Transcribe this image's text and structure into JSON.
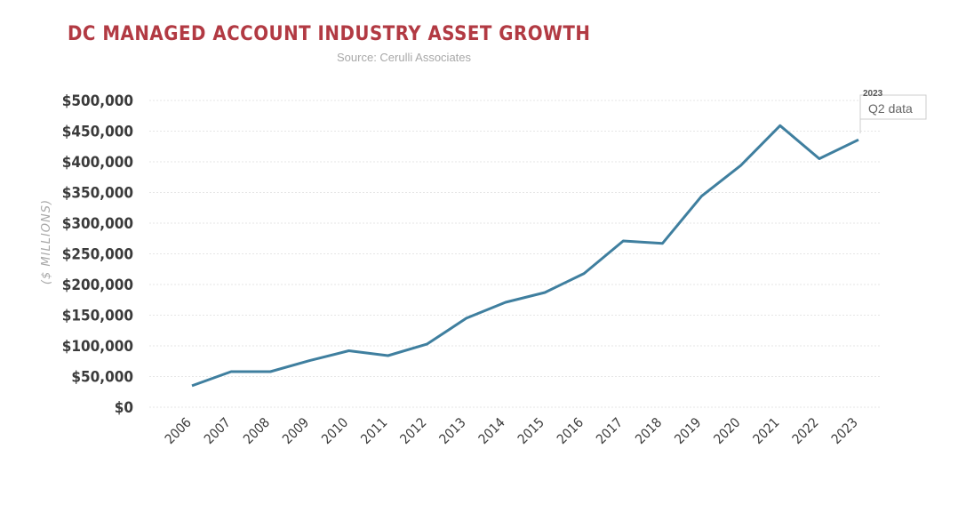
{
  "header": {
    "title": "DC MANAGED ACCOUNT INDUSTRY ASSET GROWTH",
    "source": "Source: Cerulli Associates"
  },
  "colors": {
    "title": "#b23a43",
    "line": "#3f7f9f",
    "grid": "#e6e6e6",
    "tick_text": "#3b3b3b",
    "muted": "#a8a8a8"
  },
  "chart_data": {
    "type": "line",
    "title": "DC MANAGED ACCOUNT INDUSTRY ASSET GROWTH",
    "xlabel": "",
    "ylabel": "($ MILLIONS)",
    "categories": [
      "2006",
      "2007",
      "2008",
      "2009",
      "2010",
      "2011",
      "2012",
      "2013",
      "2014",
      "2015",
      "2016",
      "2017",
      "2018",
      "2019",
      "2020",
      "2021",
      "2022",
      "2023"
    ],
    "series": [
      {
        "values": [
          35000,
          58000,
          58000,
          76000,
          92000,
          84000,
          103000,
          145000,
          171000,
          187000,
          218000,
          271000,
          267000,
          344000,
          394000,
          459000,
          405000,
          436000
        ]
      }
    ],
    "ylim": [
      0,
      500000
    ],
    "y_ticks": [
      0,
      50000,
      100000,
      150000,
      200000,
      250000,
      300000,
      350000,
      400000,
      450000,
      500000
    ],
    "y_tick_labels": [
      "$0",
      "$50,000",
      "$100,000",
      "$150,000",
      "$200,000",
      "$250,000",
      "$300,000",
      "$350,000",
      "$400,000",
      "$450,000",
      "$500,000"
    ],
    "grid": true,
    "legend": "none",
    "annotation": {
      "year": "2023",
      "text": "Q2 data",
      "target": "2023"
    }
  }
}
